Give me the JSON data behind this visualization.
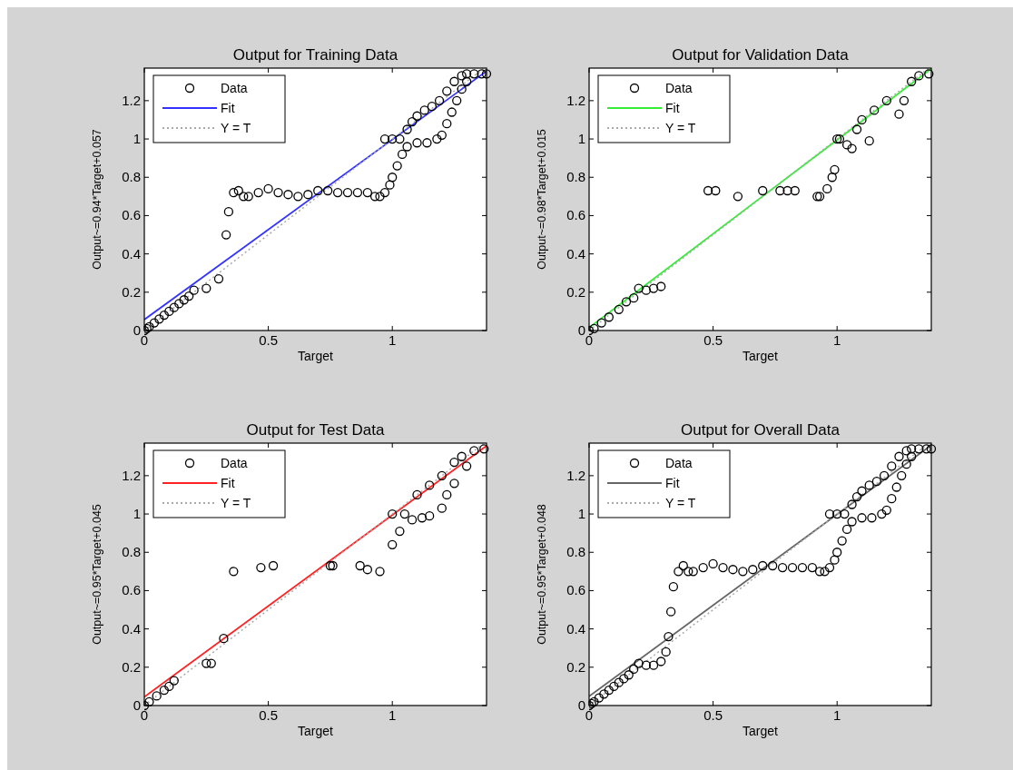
{
  "chart_data": [
    {
      "type": "scatter",
      "title": "Output for Training Data",
      "xlabel": "Target",
      "ylabel": "Output~=0.94*Target+0.057",
      "xlim": [
        0,
        1.38
      ],
      "ylim": [
        0,
        1.37
      ],
      "xticks": [
        0,
        0.5,
        1
      ],
      "yticks": [
        0,
        0.2,
        0.4,
        0.6,
        0.8,
        1,
        1.2
      ],
      "legend": "top left",
      "series": [
        {
          "name": "Data",
          "type": "scatter",
          "marker": "circle",
          "color": "#000000",
          "x": [
            0,
            0.01,
            0.02,
            0.04,
            0.06,
            0.08,
            0.1,
            0.12,
            0.14,
            0.16,
            0.18,
            0.2,
            0.25,
            0.3,
            0.33,
            0.34,
            0.36,
            0.38,
            0.4,
            0.42,
            0.46,
            0.5,
            0.54,
            0.58,
            0.62,
            0.66,
            0.7,
            0.74,
            0.78,
            0.82,
            0.86,
            0.9,
            0.93,
            0.95,
            0.97,
            0.99,
            1.0,
            1.02,
            1.04,
            1.06,
            1.1,
            1.14,
            1.18,
            1.2,
            1.22,
            1.24,
            1.26,
            1.28,
            1.3,
            0.97,
            1.0,
            1.03,
            1.06,
            1.08,
            1.1,
            1.13,
            1.16,
            1.19,
            1.22,
            1.25,
            1.28,
            1.3,
            1.33,
            1.36,
            1.38
          ],
          "values": [
            0,
            0.01,
            0.02,
            0.04,
            0.06,
            0.08,
            0.1,
            0.12,
            0.14,
            0.16,
            0.18,
            0.21,
            0.22,
            0.27,
            0.5,
            0.62,
            0.72,
            0.73,
            0.7,
            0.7,
            0.72,
            0.74,
            0.72,
            0.71,
            0.7,
            0.71,
            0.73,
            0.73,
            0.72,
            0.72,
            0.72,
            0.72,
            0.7,
            0.7,
            0.72,
            0.76,
            0.8,
            0.86,
            0.92,
            0.96,
            0.98,
            0.98,
            1.0,
            1.02,
            1.08,
            1.14,
            1.2,
            1.26,
            1.3,
            1.0,
            1.0,
            1.0,
            1.05,
            1.09,
            1.12,
            1.15,
            1.17,
            1.2,
            1.25,
            1.3,
            1.33,
            1.34,
            1.34,
            1.34,
            1.34
          ]
        },
        {
          "name": "Fit",
          "type": "line",
          "color": "#3333ff",
          "x": [
            0,
            1.38
          ],
          "values": [
            0.057,
            1.354
          ]
        },
        {
          "name": "Y = T",
          "type": "line",
          "line_style": "dotted",
          "color": "#aaaaaa",
          "x": [
            0,
            1.37
          ],
          "values": [
            0,
            1.37
          ]
        }
      ]
    },
    {
      "type": "scatter",
      "title": "Output for Validation Data",
      "xlabel": "Target",
      "ylabel": "Output~=0.98*Target+0.015",
      "xlim": [
        0,
        1.38
      ],
      "ylim": [
        0,
        1.37
      ],
      "xticks": [
        0,
        0.5,
        1
      ],
      "yticks": [
        0,
        0.2,
        0.4,
        0.6,
        0.8,
        1,
        1.2
      ],
      "legend": "top left",
      "series": [
        {
          "name": "Data",
          "type": "scatter",
          "marker": "circle",
          "color": "#000000",
          "x": [
            0,
            0.02,
            0.05,
            0.08,
            0.12,
            0.15,
            0.18,
            0.2,
            0.23,
            0.26,
            0.29,
            0.48,
            0.51,
            0.6,
            0.7,
            0.77,
            0.8,
            0.83,
            0.92,
            0.93,
            0.96,
            0.98,
            0.99,
            1.0,
            1.01,
            1.04,
            1.06,
            1.08,
            1.1,
            1.13,
            1.15,
            1.2,
            1.25,
            1.27,
            1.3,
            1.33,
            1.37
          ],
          "values": [
            0,
            0.01,
            0.04,
            0.07,
            0.11,
            0.15,
            0.17,
            0.22,
            0.21,
            0.22,
            0.23,
            0.73,
            0.73,
            0.7,
            0.73,
            0.73,
            0.73,
            0.73,
            0.7,
            0.7,
            0.74,
            0.8,
            0.84,
            1.0,
            1.0,
            0.97,
            0.95,
            1.05,
            1.1,
            0.99,
            1.15,
            1.2,
            1.13,
            1.2,
            1.3,
            1.33,
            1.34
          ]
        },
        {
          "name": "Fit",
          "type": "line",
          "color": "#33ee33",
          "x": [
            0,
            1.38
          ],
          "values": [
            0.015,
            1.367
          ]
        },
        {
          "name": "Y = T",
          "type": "line",
          "line_style": "dotted",
          "color": "#aaaaaa",
          "x": [
            0,
            1.37
          ],
          "values": [
            0,
            1.37
          ]
        }
      ]
    },
    {
      "type": "scatter",
      "title": "Output for Test Data",
      "xlabel": "Target",
      "ylabel": "Output~=0.95*Target+0.045",
      "xlim": [
        0,
        1.38
      ],
      "ylim": [
        0,
        1.37
      ],
      "xticks": [
        0,
        0.5,
        1
      ],
      "yticks": [
        0,
        0.2,
        0.4,
        0.6,
        0.8,
        1,
        1.2
      ],
      "legend": "top left",
      "series": [
        {
          "name": "Data",
          "type": "scatter",
          "marker": "circle",
          "color": "#000000",
          "x": [
            0,
            0.02,
            0.05,
            0.08,
            0.1,
            0.12,
            0.25,
            0.27,
            0.32,
            0.36,
            0.47,
            0.52,
            0.75,
            0.76,
            0.87,
            0.9,
            0.95,
            1.0,
            1.0,
            1.03,
            1.05,
            1.08,
            1.1,
            1.12,
            1.15,
            1.15,
            1.2,
            1.2,
            1.22,
            1.25,
            1.25,
            1.28,
            1.3,
            1.33,
            1.37
          ],
          "values": [
            0,
            0.02,
            0.05,
            0.08,
            0.1,
            0.13,
            0.22,
            0.22,
            0.35,
            0.7,
            0.72,
            0.73,
            0.73,
            0.73,
            0.73,
            0.71,
            0.7,
            0.84,
            1.0,
            0.91,
            1.0,
            0.97,
            1.1,
            0.98,
            0.99,
            1.15,
            1.03,
            1.2,
            1.1,
            1.16,
            1.27,
            1.3,
            1.25,
            1.33,
            1.34
          ]
        },
        {
          "name": "Fit",
          "type": "line",
          "color": "#ff2222",
          "x": [
            0,
            1.38
          ],
          "values": [
            0.045,
            1.356
          ]
        },
        {
          "name": "Y = T",
          "type": "line",
          "line_style": "dotted",
          "color": "#aaaaaa",
          "x": [
            0,
            1.37
          ],
          "values": [
            0,
            1.37
          ]
        }
      ]
    },
    {
      "type": "scatter",
      "title": "Output for Overall Data",
      "xlabel": "Target",
      "ylabel": "Output~=0.95*Target+0.048",
      "xlim": [
        0,
        1.38
      ],
      "ylim": [
        0,
        1.37
      ],
      "xticks": [
        0,
        0.5,
        1
      ],
      "yticks": [
        0,
        0.2,
        0.4,
        0.6,
        0.8,
        1,
        1.2
      ],
      "legend": "top left",
      "series": [
        {
          "name": "Data",
          "type": "scatter",
          "marker": "circle",
          "color": "#000000",
          "x": [
            0,
            0.01,
            0.02,
            0.04,
            0.06,
            0.08,
            0.1,
            0.12,
            0.14,
            0.16,
            0.18,
            0.2,
            0.23,
            0.26,
            0.29,
            0.31,
            0.32,
            0.33,
            0.34,
            0.36,
            0.38,
            0.4,
            0.42,
            0.46,
            0.5,
            0.54,
            0.58,
            0.62,
            0.66,
            0.7,
            0.74,
            0.78,
            0.82,
            0.86,
            0.9,
            0.93,
            0.95,
            0.97,
            0.99,
            1.0,
            1.02,
            1.04,
            1.06,
            1.1,
            1.14,
            1.18,
            1.2,
            1.22,
            1.24,
            1.26,
            1.28,
            1.3,
            0.97,
            1.0,
            1.03,
            1.06,
            1.08,
            1.1,
            1.13,
            1.16,
            1.19,
            1.22,
            1.25,
            1.28,
            1.3,
            1.33,
            1.36,
            1.38
          ],
          "values": [
            0,
            0.01,
            0.02,
            0.04,
            0.06,
            0.08,
            0.1,
            0.12,
            0.14,
            0.16,
            0.19,
            0.22,
            0.21,
            0.21,
            0.23,
            0.28,
            0.36,
            0.49,
            0.62,
            0.7,
            0.73,
            0.7,
            0.7,
            0.72,
            0.74,
            0.72,
            0.71,
            0.7,
            0.71,
            0.73,
            0.73,
            0.72,
            0.72,
            0.72,
            0.72,
            0.7,
            0.7,
            0.72,
            0.76,
            0.8,
            0.86,
            0.92,
            0.96,
            0.98,
            0.98,
            1.0,
            1.02,
            1.08,
            1.14,
            1.2,
            1.26,
            1.3,
            1.0,
            1.0,
            1.0,
            1.05,
            1.09,
            1.12,
            1.15,
            1.17,
            1.2,
            1.25,
            1.3,
            1.33,
            1.34,
            1.34,
            1.34,
            1.34
          ]
        },
        {
          "name": "Fit",
          "type": "line",
          "color": "#666666",
          "x": [
            0,
            1.38
          ],
          "values": [
            0.048,
            1.359
          ]
        },
        {
          "name": "Y = T",
          "type": "line",
          "line_style": "dotted",
          "color": "#aaaaaa",
          "x": [
            0,
            1.37
          ],
          "values": [
            0,
            1.37
          ]
        }
      ]
    }
  ]
}
